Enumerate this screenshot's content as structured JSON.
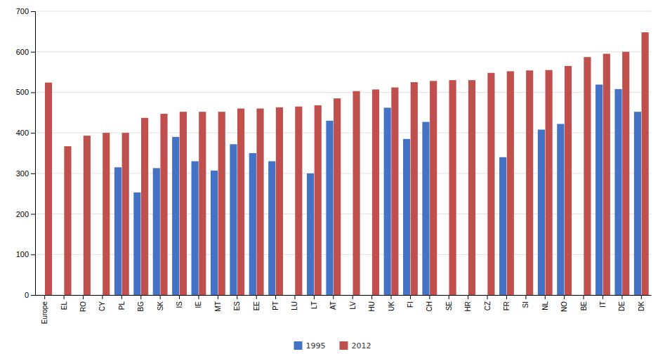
{
  "chart_data": {
    "type": "bar",
    "categories": [
      "Europe",
      "EL",
      "RO",
      "CY",
      "PL",
      "BG",
      "SK",
      "IS",
      "IE",
      "MT",
      "ES",
      "EE",
      "PT",
      "LU",
      "LT",
      "AT",
      "LV",
      "HU",
      "UK",
      "FI",
      "CH",
      "SE",
      "HR",
      "CZ",
      "FR",
      "SI",
      "NL",
      "NO",
      "BE",
      "IT",
      "DE",
      "DK"
    ],
    "series": [
      {
        "name": "1995",
        "color": "#4472C4",
        "values": [
          null,
          null,
          null,
          null,
          315,
          253,
          313,
          390,
          330,
          307,
          372,
          350,
          330,
          null,
          300,
          430,
          null,
          null,
          462,
          385,
          427,
          null,
          null,
          null,
          340,
          null,
          408,
          422,
          null,
          519,
          508,
          452
        ]
      },
      {
        "name": "2012",
        "color": "#C0504D",
        "values": [
          524,
          367,
          393,
          400,
          400,
          437,
          447,
          452,
          452,
          452,
          460,
          460,
          463,
          465,
          468,
          485,
          503,
          507,
          512,
          525,
          528,
          530,
          530,
          548,
          552,
          554,
          555,
          565,
          587,
          595,
          600,
          648
        ]
      }
    ],
    "ylim": [
      0,
      700
    ],
    "yticks": [
      0,
      100,
      200,
      300,
      400,
      500,
      600,
      700
    ],
    "grid": true,
    "legend": "bottom"
  }
}
